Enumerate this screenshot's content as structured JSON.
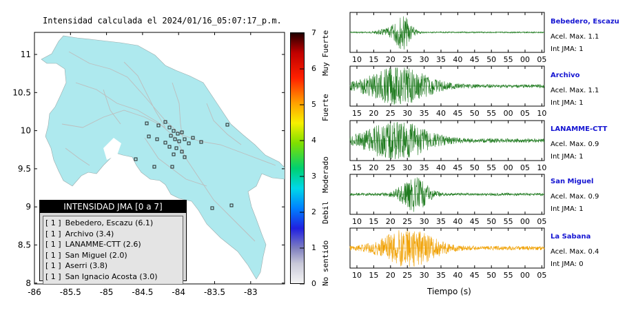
{
  "map": {
    "title": "Intensidad calculada el 2024/01/16_05:07:17_p.m.",
    "x_ticks": [
      "-86",
      "-85.5",
      "-85",
      "-84.5",
      "-84",
      "-83.5",
      "-83"
    ],
    "y_ticks": [
      "11",
      "10.5",
      "10",
      "9.5",
      "9",
      "8.5",
      "8"
    ],
    "colors": {
      "land": "#aee9ee",
      "roads": "#bdbdbd"
    }
  },
  "legend": {
    "title": "INTENSIDAD JMA [0 a 7]",
    "items": [
      {
        "badge": "[ 1 ]",
        "label": "Bebedero, Escazu (6.1)"
      },
      {
        "badge": "[ 1 ]",
        "label": "Archivo (3.4)"
      },
      {
        "badge": "[ 1 ]",
        "label": "LANAMME-CTT (2.6)"
      },
      {
        "badge": "[ 1 ]",
        "label": "San Miguel (2.0)"
      },
      {
        "badge": "[ 1 ]",
        "label": "Aserri (3.8)"
      },
      {
        "badge": "[ 1 ]",
        "label": "San Ignacio Acosta (3.0)"
      }
    ]
  },
  "colorbar": {
    "ticks": [
      "0",
      "1",
      "2",
      "3",
      "4",
      "5",
      "6",
      "7"
    ],
    "words": [
      "No sentido",
      "Debil",
      "Moderado",
      "Fuerte",
      "Muy Fuerte"
    ]
  },
  "waveforms": {
    "time_label": "Tiempo (s)",
    "accel_prefix": "Acel. Max.",
    "jma_prefix": "Int JMA:",
    "stations": [
      {
        "name": "Bebedero, Escazu",
        "accel": "1.1",
        "jma": "1",
        "color": "#1e7a1e",
        "ticks": [
          "10",
          "15",
          "20",
          "25",
          "30",
          "35",
          "40",
          "45",
          "50",
          "55",
          "00",
          "05"
        ]
      },
      {
        "name": "Archivo",
        "accel": "1.1",
        "jma": "1",
        "color": "#1e7a1e",
        "ticks": [
          "15",
          "20",
          "25",
          "30",
          "35",
          "40",
          "45",
          "50",
          "55",
          "00",
          "05",
          "10"
        ]
      },
      {
        "name": "LANAMME-CTT",
        "accel": "0.9",
        "jma": "1",
        "color": "#1e7a1e",
        "ticks": [
          "15",
          "20",
          "25",
          "30",
          "35",
          "40",
          "45",
          "50",
          "55",
          "00",
          "05",
          "10"
        ]
      },
      {
        "name": "San Miguel",
        "accel": "0.9",
        "jma": "1",
        "color": "#1e7a1e",
        "ticks": [
          "10",
          "15",
          "20",
          "25",
          "30",
          "35",
          "40",
          "45",
          "50",
          "55",
          "00",
          "05"
        ]
      },
      {
        "name": "La Sabana",
        "accel": "0.4",
        "jma": "0",
        "color": "#f0a000",
        "ticks": [
          "10",
          "15",
          "20",
          "25",
          "30",
          "35",
          "40",
          "45",
          "50",
          "55",
          "00",
          "05"
        ]
      }
    ]
  }
}
